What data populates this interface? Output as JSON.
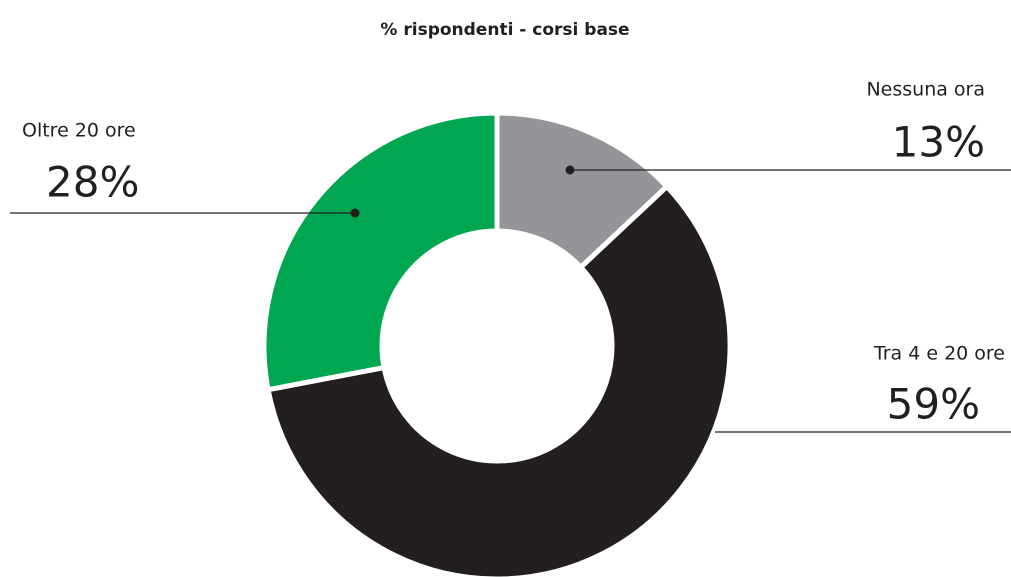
{
  "chart_data": {
    "type": "donut",
    "title": "% rispondenti - corsi base",
    "categories": [
      "Nessuna ora",
      "Tra 4 e 20 ore",
      "Oltre 20 ore"
    ],
    "values": [
      13,
      59,
      28
    ],
    "value_labels": [
      "13%",
      "59%",
      "28%"
    ],
    "colors": [
      "#939598",
      "#231f20",
      "#00a650"
    ]
  }
}
